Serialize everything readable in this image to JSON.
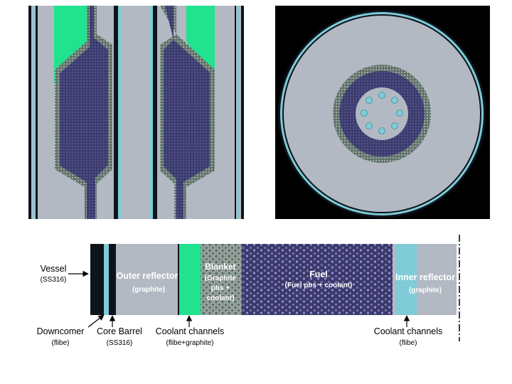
{
  "colors": {
    "graphite": "#b3b9c3",
    "vessel": "#0d141c",
    "coolant": "#7fcbd6",
    "green_coolant": "#21e28f",
    "fuel": "#3c3c6e",
    "blanket": "#6f7f78",
    "background_black": "#000000"
  },
  "strip": {
    "regions": {
      "outer_reflector": {
        "name": "Outer reflector",
        "material": "(graphite)"
      },
      "blanket": {
        "name": "Blanket",
        "material_lines": [
          "(Graphite",
          "pbs +",
          "coolant)"
        ]
      },
      "fuel": {
        "name": "Fuel",
        "material": "(Fuel pbs + coolant)"
      },
      "inner_reflector": {
        "name": "Inner reflector",
        "material": "(graphite)"
      }
    },
    "callouts": {
      "vessel": {
        "name": "Vessel",
        "material": "(SS316)"
      },
      "downcomer": {
        "name": "Downcomer",
        "material": "(flibe)"
      },
      "core_barrel": {
        "name": "Core Barrel",
        "material": "(SS316)"
      },
      "coolant_channels_left": {
        "name": "Coolant channels",
        "material": "(flibe+graphite)"
      },
      "coolant_channels_right": {
        "name": "Coolant channels",
        "material": "(flibe)"
      }
    }
  }
}
